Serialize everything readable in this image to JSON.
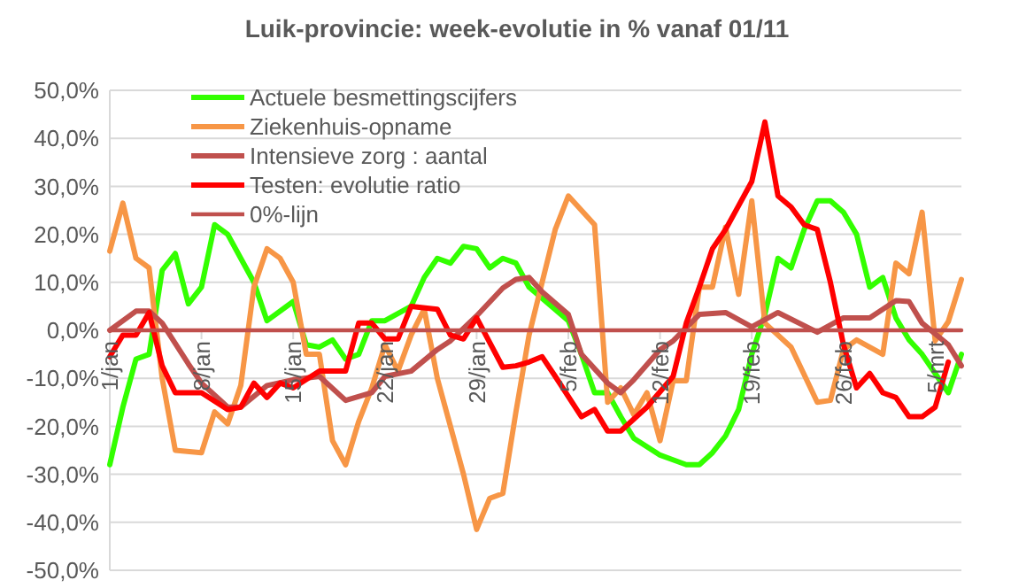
{
  "chart_data": {
    "type": "line",
    "title": "Luik-provincie: week-evolutie in %  vanaf 01/11",
    "xlim": [
      "--01-01",
      "--03-07"
    ],
    "xticks": [
      {
        "value": "--01-01",
        "label": "1/jan"
      },
      {
        "value": "--01-08",
        "label": "8/jan"
      },
      {
        "value": "--01-15",
        "label": "15/jan"
      },
      {
        "value": "--01-22",
        "label": "22/jan"
      },
      {
        "value": "--01-29",
        "label": "29/jan"
      },
      {
        "value": "--02-05",
        "label": "5/feb"
      },
      {
        "value": "--02-12",
        "label": "12/feb"
      },
      {
        "value": "--02-19",
        "label": "19/feb"
      },
      {
        "value": "--02-26",
        "label": "26/feb"
      },
      {
        "value": "--03-05",
        "label": "5/mrt"
      }
    ],
    "ylim": [
      -50,
      50
    ],
    "yticks": [
      {
        "value": -50,
        "label": "-50,0%"
      },
      {
        "value": -40,
        "label": "-40,0%"
      },
      {
        "value": -30,
        "label": "-30,0%"
      },
      {
        "value": -20,
        "label": "-20,0%"
      },
      {
        "value": -10,
        "label": "-10,0%"
      },
      {
        "value": 0,
        "label": "0,0%"
      },
      {
        "value": 10,
        "label": "10,0%"
      },
      {
        "value": 20,
        "label": "20,0%"
      },
      {
        "value": 30,
        "label": "30,0%"
      },
      {
        "value": 40,
        "label": "40,0%"
      },
      {
        "value": 50,
        "label": "50,0%"
      }
    ],
    "grid": "y",
    "legend": "top",
    "marker": "none",
    "line_style": "solid",
    "series": [
      {
        "name": "Actuele besmettingscijfers",
        "color": "#33ff00",
        "x": [
          "--01-01",
          "--01-02",
          "--01-03",
          "--01-04",
          "--01-05",
          "--01-06",
          "--01-07",
          "--01-08",
          "--01-09",
          "--01-10",
          "--01-11",
          "--01-12",
          "--01-13",
          "--01-15",
          "--01-16",
          "--01-17",
          "--01-18",
          "--01-19",
          "--01-20",
          "--01-21",
          "--01-22",
          "--01-24",
          "--01-25",
          "--01-26",
          "--01-27",
          "--01-28",
          "--01-29",
          "--01-30",
          "--01-31",
          "--02-01",
          "--02-02",
          "--02-05",
          "--02-06",
          "--02-07",
          "--02-08",
          "--02-09",
          "--02-10",
          "--02-12",
          "--02-14",
          "--02-15",
          "--02-16",
          "--02-17",
          "--02-18",
          "--02-19",
          "--02-20",
          "--02-21",
          "--02-22",
          "--02-23",
          "--02-24",
          "--02-25",
          "--02-26",
          "--02-27",
          "--02-28",
          "--03-01",
          "--03-02",
          "--03-03",
          "--03-04",
          "--03-05",
          "--03-06",
          "--03-07"
        ],
        "values": [
          -28,
          -16,
          -6,
          -5,
          12.5,
          16,
          5.5,
          9,
          22,
          20,
          15,
          10,
          2,
          6,
          -3,
          -3.5,
          -2,
          -6,
          -5,
          2,
          2,
          5,
          11,
          15,
          14,
          17.5,
          17,
          13,
          15,
          14,
          9,
          2,
          -5,
          -13,
          -13,
          -18,
          -22.5,
          -26,
          -28,
          -28,
          -25.5,
          -22,
          -16.5,
          -5,
          3.3,
          15,
          13,
          21,
          27,
          27,
          24.6,
          20,
          9,
          11,
          2.6,
          -2,
          -5,
          -9,
          -13,
          -5
        ]
      },
      {
        "name": "Ziekenhuis-opname",
        "color": "#f79646",
        "x": [
          "--01-01",
          "--01-02",
          "--01-03",
          "--01-04",
          "--01-05",
          "--01-06",
          "--01-08",
          "--01-09",
          "--01-10",
          "--01-11",
          "--01-12",
          "--01-13",
          "--01-14",
          "--01-15",
          "--01-16",
          "--01-17",
          "--01-18",
          "--01-19",
          "--01-20",
          "--01-21",
          "--01-22",
          "--01-23",
          "--01-24",
          "--01-25",
          "--01-26",
          "--01-27",
          "--01-28",
          "--01-29",
          "--01-30",
          "--01-31",
          "--02-01",
          "--02-02",
          "--02-03",
          "--02-04",
          "--02-05",
          "--02-07",
          "--02-08",
          "--02-09",
          "--02-10",
          "--02-11",
          "--02-12",
          "--02-13",
          "--02-14",
          "--02-15",
          "--02-16",
          "--02-17",
          "--02-18",
          "--02-19",
          "--02-20",
          "--02-22",
          "--02-24",
          "--02-25",
          "--02-26",
          "--02-27",
          "--03-01",
          "--03-02",
          "--03-03",
          "--03-04",
          "--03-05",
          "--03-06",
          "--03-07"
        ],
        "values": [
          16.5,
          26.5,
          15,
          13,
          -10,
          -25,
          -25.5,
          -17,
          -19.5,
          -11.5,
          9,
          17,
          15,
          10,
          -5,
          -5,
          -23,
          -28,
          -19,
          -12,
          -3,
          -8.5,
          -1,
          4.4,
          -10,
          -20,
          -30,
          -41.5,
          -35,
          -34,
          -17,
          -1,
          10,
          21,
          28,
          22,
          -15,
          -12,
          -17.6,
          -13,
          -23,
          -10.5,
          -10.5,
          9,
          9,
          21.5,
          7.5,
          27,
          1.5,
          -3.5,
          -15,
          -14.6,
          -4,
          -2,
          -5,
          14,
          11.8,
          24.6,
          -2.2,
          1.8,
          10.6
        ]
      },
      {
        "name": "Intensieve zorg : aantal",
        "color": "#c0504d",
        "x": [
          "--01-01",
          "--01-03",
          "--01-04",
          "--01-05",
          "--01-07",
          "--01-08",
          "--01-10",
          "--01-11",
          "--01-13",
          "--01-15",
          "--01-17",
          "--01-19",
          "--01-21",
          "--01-22",
          "--01-24",
          "--01-26",
          "--01-27",
          "--01-29",
          "--01-31",
          "--02-01",
          "--02-02",
          "--02-03",
          "--02-05",
          "--02-06",
          "--02-07",
          "--02-08",
          "--02-09",
          "--02-10",
          "--02-12",
          "--02-13",
          "--02-15",
          "--02-17",
          "--02-19",
          "--02-21",
          "--02-24",
          "--02-26",
          "--02-28",
          "--03-02",
          "--03-03",
          "--03-04",
          "--03-06",
          "--03-07"
        ],
        "values": [
          0,
          4,
          4,
          1.5,
          -7,
          -11,
          -16,
          -16,
          -11.5,
          -10.3,
          -9.6,
          -14.6,
          -13,
          -9.6,
          -8.5,
          -4,
          -2.2,
          3,
          8.8,
          10.6,
          11,
          8,
          3.3,
          -5,
          -8,
          -11,
          -13,
          -10.3,
          -4,
          -2.2,
          3.3,
          3.7,
          0.7,
          3.7,
          -0.4,
          2.6,
          2.6,
          6.2,
          6,
          1.5,
          -3,
          -7.4
        ]
      },
      {
        "name": "Testen: evolutie ratio",
        "color": "#ff0000",
        "x": [
          "--01-01",
          "--01-02",
          "--01-03",
          "--01-04",
          "--01-05",
          "--01-06",
          "--01-08",
          "--01-10",
          "--01-11",
          "--01-12",
          "--01-13",
          "--01-14",
          "--01-15",
          "--01-17",
          "--01-19",
          "--01-20",
          "--01-21",
          "--01-22",
          "--01-23",
          "--01-24",
          "--01-26",
          "--01-27",
          "--01-28",
          "--01-29",
          "--01-31",
          "--02-01",
          "--02-02",
          "--02-03",
          "--02-04",
          "--02-06",
          "--02-07",
          "--02-08",
          "--02-09",
          "--02-11",
          "--02-13",
          "--02-14",
          "--02-15",
          "--02-16",
          "--02-17",
          "--02-18",
          "--02-19",
          "--02-20",
          "--02-21",
          "--02-22",
          "--02-23",
          "--02-24",
          "--02-25",
          "--02-26",
          "--02-27",
          "--02-28",
          "--03-01",
          "--03-02",
          "--03-03",
          "--03-04",
          "--03-05",
          "--03-06"
        ],
        "values": [
          -5.5,
          -1,
          -1,
          3.7,
          -7.4,
          -13,
          -13,
          -16.5,
          -16,
          -11,
          -14,
          -11,
          -12,
          -8.5,
          -8.5,
          1.5,
          1.5,
          -1.8,
          -1.8,
          5,
          4.4,
          -1,
          -1.8,
          2.6,
          -7.7,
          -7.4,
          -6.6,
          -5.5,
          -9.6,
          -18,
          -16.5,
          -21,
          -21,
          -16,
          -9.6,
          1.5,
          9,
          17,
          21,
          26,
          31,
          43.4,
          28,
          25.7,
          22,
          21,
          10,
          -3,
          -12,
          -9,
          -13,
          -14,
          -18,
          -18,
          -16,
          -6.6
        ]
      },
      {
        "name": "0%-lijn",
        "color": "#c0504d",
        "x": [
          "--01-01",
          "--03-07"
        ],
        "values": [
          0,
          0
        ]
      }
    ]
  }
}
